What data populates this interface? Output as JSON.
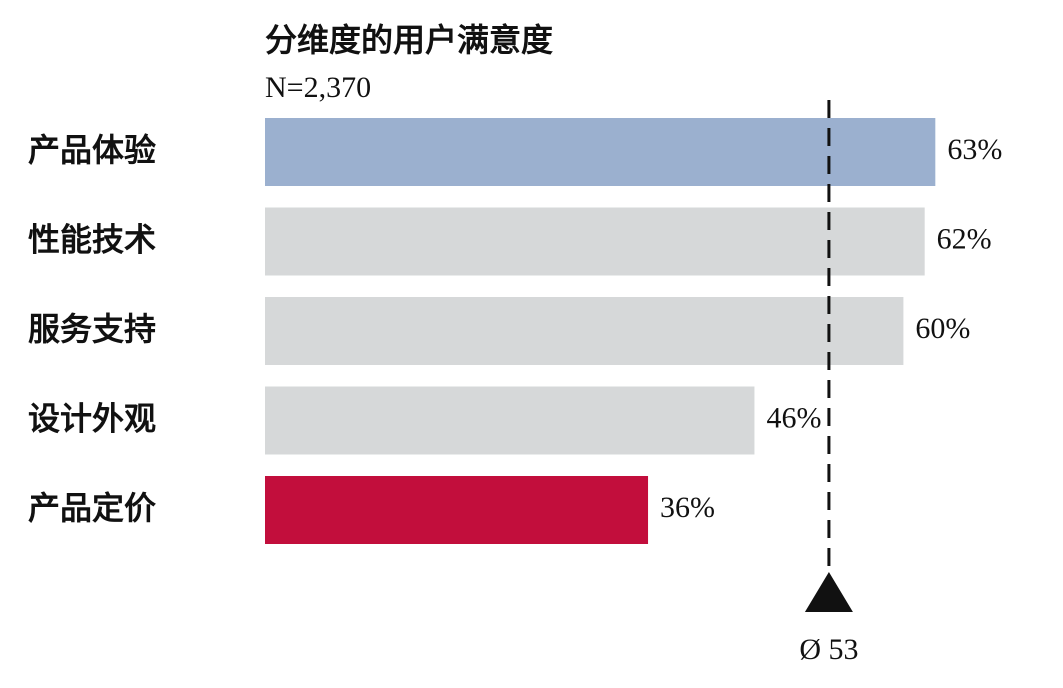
{
  "chart_data": {
    "type": "bar",
    "orientation": "horizontal",
    "title": "分维度的用户满意度",
    "subtitle": "N=2,370",
    "categories": [
      "产品体验",
      "性能技术",
      "服务支持",
      "设计外观",
      "产品定价"
    ],
    "values": [
      63,
      62,
      60,
      46,
      36
    ],
    "value_labels": [
      "63%",
      "62%",
      "60%",
      "46%",
      "36%"
    ],
    "colors": [
      "#9bb0cf",
      "#d6d8d9",
      "#d6d8d9",
      "#d6d8d9",
      "#c20e3c"
    ],
    "xlim": [
      0,
      75
    ],
    "average": {
      "value": 53,
      "label": "Ø 53"
    }
  }
}
